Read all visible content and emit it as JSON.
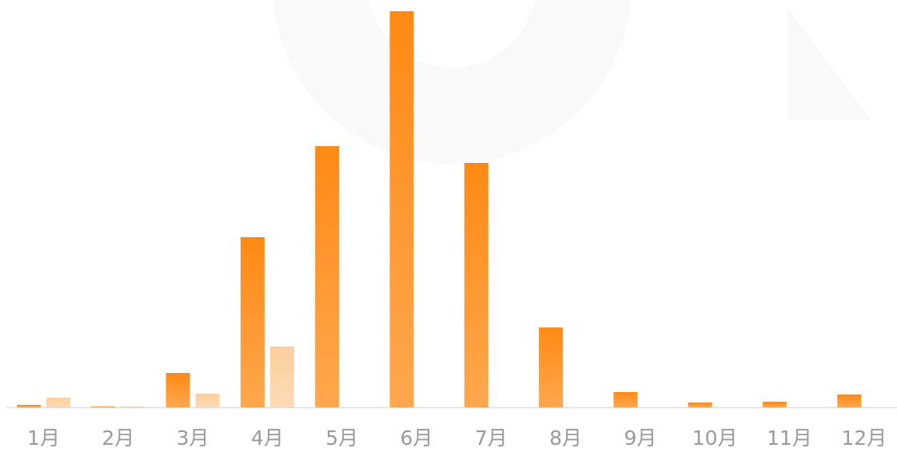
{
  "chart_data": {
    "type": "bar",
    "categories": [
      "1月",
      "2月",
      "3月",
      "4月",
      "5月",
      "6月",
      "7月",
      "8月",
      "9月",
      "10月",
      "11月",
      "12月"
    ],
    "series": [
      {
        "color": "#ff8a14",
        "values": [
          3,
          1,
          43,
          213,
          327,
          496,
          306,
          100,
          19,
          6,
          7,
          16
        ]
      },
      {
        "color": "#fdcf9d",
        "values": [
          12,
          1,
          17,
          76,
          0,
          0,
          0,
          0,
          0,
          0,
          0,
          0
        ]
      }
    ],
    "ylim": [
      0,
      500
    ]
  }
}
